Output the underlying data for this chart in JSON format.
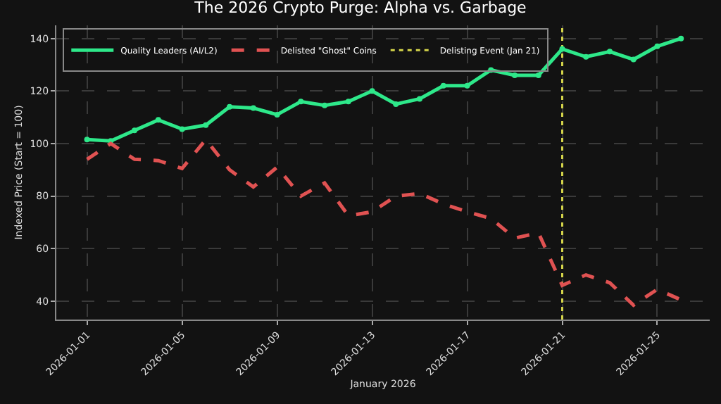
{
  "chart_data": {
    "type": "line",
    "title": "The 2026 Crypto Purge: Alpha vs. Garbage",
    "xlabel": "January 2026",
    "ylabel": "Indexed Price (Start = 100)",
    "x": [
      "2026-01-01",
      "2026-01-02",
      "2026-01-03",
      "2026-01-04",
      "2026-01-05",
      "2026-01-06",
      "2026-01-07",
      "2026-01-08",
      "2026-01-09",
      "2026-01-10",
      "2026-01-11",
      "2026-01-12",
      "2026-01-13",
      "2026-01-14",
      "2026-01-15",
      "2026-01-16",
      "2026-01-17",
      "2026-01-18",
      "2026-01-19",
      "2026-01-20",
      "2026-01-21",
      "2026-01-22",
      "2026-01-23",
      "2026-01-24",
      "2026-01-25",
      "2026-01-26"
    ],
    "series": [
      {
        "name": "Quality Leaders (AI/L2)",
        "color": "#2ee88a",
        "line_style": "solid",
        "marker": "circle",
        "values": [
          101.5,
          101,
          105,
          109,
          105.5,
          107,
          114,
          113.5,
          111,
          116,
          114.5,
          116,
          120,
          115,
          117,
          122,
          122,
          128,
          126,
          126,
          136,
          133,
          135,
          132,
          137,
          140
        ]
      },
      {
        "name": "Delisted \"Ghost\" Coins",
        "color": "#e05252",
        "line_style": "dashed",
        "marker": "none",
        "values": [
          94,
          100,
          94,
          93.5,
          90.5,
          101.5,
          90,
          83.5,
          91,
          80,
          85,
          72.5,
          74,
          80,
          81,
          77,
          74,
          71.5,
          64,
          66,
          46,
          50,
          47,
          38.5,
          44.5,
          40.5
        ]
      }
    ],
    "ref_lines": [
      {
        "axis": "x",
        "value": "2026-01-21",
        "label": "Delisting Event (Jan 21)",
        "color": "#d4d44a",
        "line_style": "dotted"
      }
    ],
    "xlim": [
      "2025-12-30T17:00",
      "2026-01-27T05:00"
    ],
    "xticks": [
      "2026-01-01",
      "2026-01-05",
      "2026-01-09",
      "2026-01-13",
      "2026-01-17",
      "2026-01-21",
      "2026-01-25"
    ],
    "ylim": [
      33,
      145
    ],
    "yticks": [
      40,
      60,
      80,
      100,
      120,
      140
    ],
    "grid": true,
    "legend": "top left"
  }
}
